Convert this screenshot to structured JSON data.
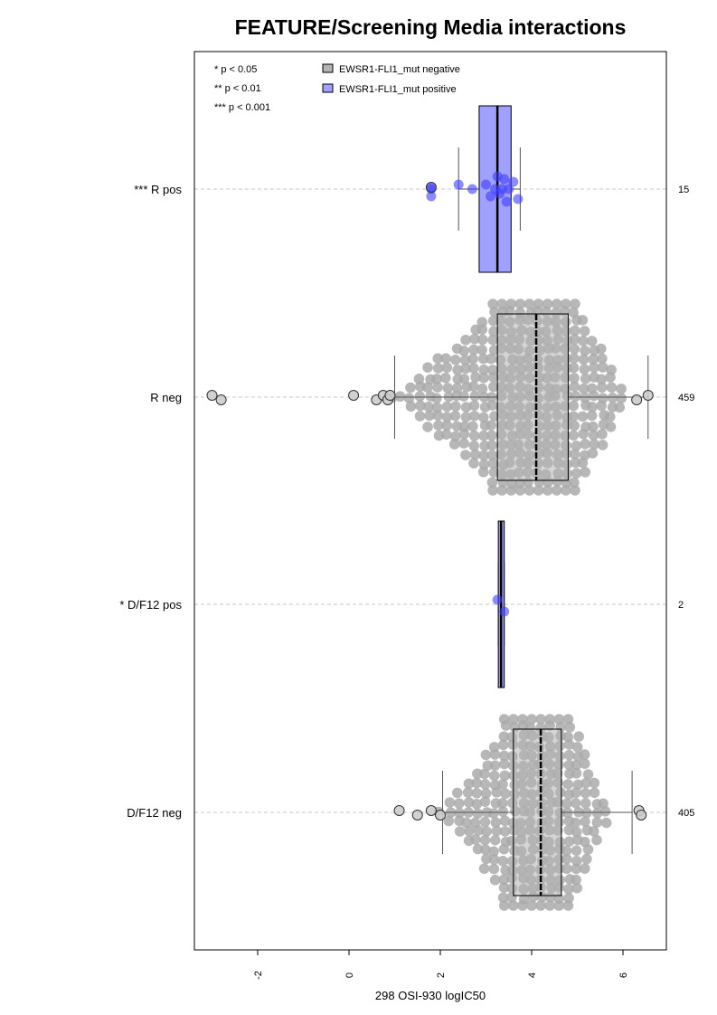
{
  "chart_data": {
    "type": "boxplot",
    "title": "FEATURE/Screening Media interactions",
    "xlabel": "298 OSI-930 logIC50",
    "xlim": [
      -3.6,
      6.8
    ],
    "xticks": [
      -2,
      0,
      2,
      4,
      6
    ],
    "xtick_labels": [
      "-2",
      "0",
      "2",
      "4",
      "6"
    ],
    "orientation": "horizontal",
    "grid": "horizontal dashed guide lines at each group",
    "legend": {
      "placement": "top-left",
      "pvalue_notes": [
        "* p < 0.05",
        "** p < 0.01",
        "*** p < 0.001"
      ],
      "entries": [
        {
          "label": "EWSR1-FLI1_mut negative",
          "color": "#b3b3b3"
        },
        {
          "label": "EWSR1-FLI1_mut positive",
          "color": "#a0a0ff"
        }
      ]
    },
    "groups": [
      {
        "label": "*** R pos",
        "n": "15",
        "status": "positive",
        "box": {
          "q1": 2.85,
          "median": 3.25,
          "q3": 3.55
        },
        "whiskers": [
          2.4,
          3.75
        ],
        "points": [
          3.0,
          3.1,
          3.2,
          3.25,
          3.3,
          3.35,
          3.4,
          3.45,
          3.5,
          3.6,
          3.7,
          2.7,
          2.4,
          1.8,
          1.8
        ],
        "outliers": [
          1.8
        ]
      },
      {
        "label": "R neg",
        "n": "459",
        "status": "negative",
        "box": {
          "q1": 3.25,
          "median": 4.1,
          "q3": 4.8
        },
        "whiskers": [
          1.0,
          6.55
        ],
        "outliers": [
          -3.0,
          -2.8,
          0.1,
          0.6,
          0.75,
          0.85,
          0.9,
          6.3,
          6.55
        ]
      },
      {
        "label": "* D/F12 pos",
        "n": "2",
        "status": "positive",
        "box": {
          "q1": 3.27,
          "median": 3.33,
          "q3": 3.4
        },
        "whiskers": [
          3.27,
          3.4
        ],
        "points": [
          3.25,
          3.4
        ]
      },
      {
        "label": "D/F12 neg",
        "n": "405",
        "status": "negative",
        "box": {
          "q1": 3.6,
          "median": 4.2,
          "q3": 4.65
        },
        "whiskers": [
          2.05,
          6.2
        ],
        "outliers": [
          1.1,
          1.5,
          1.8,
          2.0,
          6.35,
          6.4
        ]
      }
    ]
  },
  "colors": {
    "negative_fill": "#b3b3b3",
    "negative_point": "#aaaaaa",
    "positive_fill": "#a0a0ff",
    "positive_point": "#4040ff",
    "guide": "#c8c8c8",
    "axis": "#000000"
  }
}
